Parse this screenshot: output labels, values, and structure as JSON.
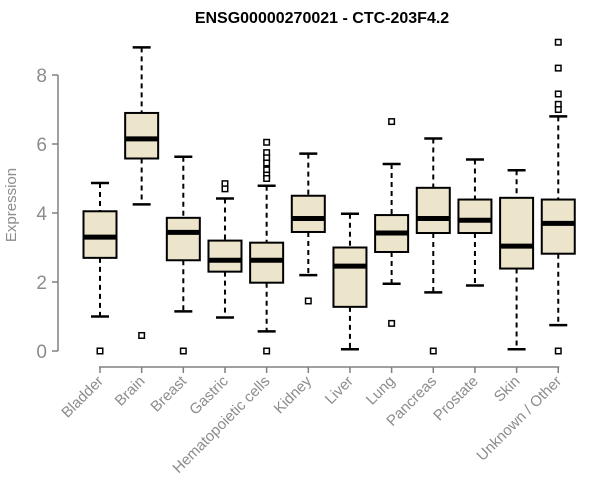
{
  "page": {
    "title": "ENSG00000270021 - CTC-203F4.2"
  },
  "chart_data": {
    "type": "boxplot",
    "title": "ENSG00000270021 - CTC-203F4.2",
    "ylabel": "Expression",
    "xlabel": "",
    "ylim": [
      0,
      9.2
    ],
    "yticks": [
      0,
      2,
      4,
      6,
      8
    ],
    "grid": false,
    "legend": null,
    "categories": [
      "Bladder",
      "Brain",
      "Breast",
      "Gastric",
      "Hematopoietic cells",
      "Kidney",
      "Liver",
      "Lung",
      "Pancreas",
      "Prostate",
      "Skin",
      "Unknown / Other"
    ],
    "series": [
      {
        "name": "Bladder",
        "low": 1.0,
        "q1": 2.7,
        "median": 3.3,
        "q3": 4.05,
        "high": 4.87,
        "outliers": [
          0
        ]
      },
      {
        "name": "Brain",
        "low": 4.25,
        "q1": 5.58,
        "median": 6.15,
        "q3": 6.9,
        "high": 8.8,
        "outliers": [
          0.45
        ]
      },
      {
        "name": "Breast",
        "low": 1.15,
        "q1": 2.63,
        "median": 3.44,
        "q3": 3.86,
        "high": 5.63,
        "outliers": [
          0
        ]
      },
      {
        "name": "Gastric",
        "low": 0.97,
        "q1": 2.3,
        "median": 2.63,
        "q3": 3.2,
        "high": 4.42,
        "outliers": [
          4.85,
          4.7
        ]
      },
      {
        "name": "Hematopoietic cells",
        "low": 0.57,
        "q1": 1.98,
        "median": 2.63,
        "q3": 3.14,
        "high": 4.79,
        "outliers": [
          6.05,
          5.75,
          5.6,
          5.45,
          5.25,
          5.1,
          5.0,
          0
        ]
      },
      {
        "name": "Kidney",
        "low": 2.2,
        "q1": 3.45,
        "median": 3.84,
        "q3": 4.5,
        "high": 5.72,
        "outliers": [
          1.45
        ]
      },
      {
        "name": "Liver",
        "low": 0.05,
        "q1": 1.28,
        "median": 2.46,
        "q3": 3.0,
        "high": 3.98,
        "outliers": []
      },
      {
        "name": "Lung",
        "low": 1.95,
        "q1": 2.87,
        "median": 3.42,
        "q3": 3.94,
        "high": 5.42,
        "outliers": [
          6.65,
          0.8
        ]
      },
      {
        "name": "Pancreas",
        "low": 1.7,
        "q1": 3.42,
        "median": 3.84,
        "q3": 4.73,
        "high": 6.16,
        "outliers": [
          0
        ]
      },
      {
        "name": "Prostate",
        "low": 1.9,
        "q1": 3.42,
        "median": 3.79,
        "q3": 4.39,
        "high": 5.55,
        "outliers": []
      },
      {
        "name": "Skin",
        "low": 0.05,
        "q1": 2.39,
        "median": 3.04,
        "q3": 4.44,
        "high": 5.24,
        "outliers": []
      },
      {
        "name": "Unknown / Other",
        "low": 0.75,
        "q1": 2.82,
        "median": 3.7,
        "q3": 4.39,
        "high": 6.8,
        "outliers": [
          8.95,
          8.2,
          7.45,
          7.15,
          7.0,
          0
        ]
      }
    ],
    "colors": {
      "box_fill": "#ECE5CB",
      "box_stroke": "#000000",
      "median": "#000000",
      "outlier_fill": "#ffffff",
      "axis": "#808080",
      "tick_label": "#8c8c8c",
      "title": "#000000",
      "background": "#ffffff"
    }
  }
}
